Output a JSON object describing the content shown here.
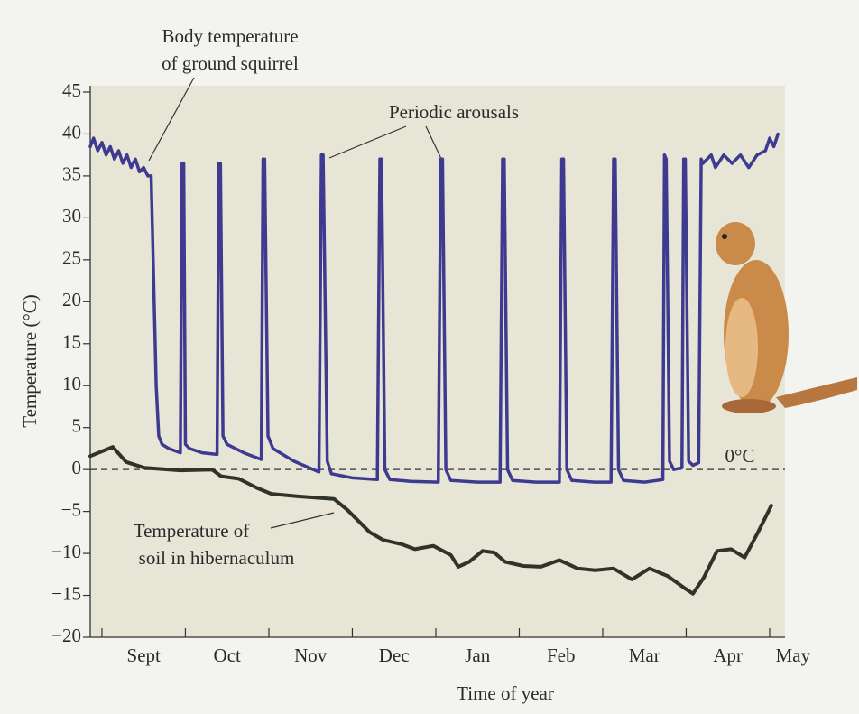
{
  "chart_data": {
    "type": "line",
    "x_title": "Time of year",
    "y_title": "Temperature (°C)",
    "xlim": [
      -0.14,
      8.13
    ],
    "xticks": [
      0,
      1,
      2,
      3,
      4,
      5,
      6,
      7,
      8
    ],
    "x_labels": [
      {
        "value": 0.5,
        "label": "Sept"
      },
      {
        "value": 1.5,
        "label": "Oct"
      },
      {
        "value": 2.5,
        "label": "Nov"
      },
      {
        "value": 3.5,
        "label": "Dec"
      },
      {
        "value": 4.5,
        "label": "Jan"
      },
      {
        "value": 5.5,
        "label": "Feb"
      },
      {
        "value": 6.5,
        "label": "Mar"
      },
      {
        "value": 7.5,
        "label": "Apr"
      },
      {
        "value": 8.28,
        "label": "May"
      }
    ],
    "ylim": [
      -20,
      45
    ],
    "yticks": [
      {
        "value": -20,
        "label": "−20"
      },
      {
        "value": -15,
        "label": "−15"
      },
      {
        "value": -10,
        "label": "−10"
      },
      {
        "value": -5,
        "label": "−5"
      },
      0,
      5,
      10,
      15,
      20,
      25,
      30,
      35,
      40,
      45
    ],
    "reference_line": {
      "value": 0,
      "label": "0°C"
    },
    "series": [
      {
        "color": "#3d3a8f",
        "x": [
          -0.14,
          -0.1,
          -0.05,
          0,
          0.05,
          0.1,
          0.15,
          0.2,
          0.25,
          0.3,
          0.35,
          0.4,
          0.45,
          0.5,
          0.55,
          0.59,
          0.65,
          0.68,
          0.72,
          0.8,
          0.94,
          0.96,
          0.98,
          1.0,
          1.05,
          1.2,
          1.38,
          1.4,
          1.42,
          1.45,
          1.5,
          1.7,
          1.91,
          1.93,
          1.95,
          1.99,
          2.05,
          2.3,
          2.6,
          2.63,
          2.65,
          2.7,
          2.75,
          3.0,
          3.3,
          3.33,
          3.35,
          3.39,
          3.45,
          3.7,
          4.03,
          4.06,
          4.08,
          4.12,
          4.18,
          4.5,
          4.77,
          4.8,
          4.82,
          4.86,
          4.92,
          5.2,
          5.48,
          5.51,
          5.53,
          5.57,
          5.63,
          5.9,
          6.1,
          6.13,
          6.15,
          6.19,
          6.25,
          6.5,
          6.72,
          6.74,
          6.76,
          6.8,
          6.85,
          6.95,
          6.97,
          6.99,
          7.03,
          7.08,
          7.15,
          7.18,
          7.2,
          7.3,
          7.35,
          7.45,
          7.55,
          7.65,
          7.75,
          7.85,
          7.95,
          8.0,
          8.05,
          8.1
        ],
        "values": [
          38.5,
          39.5,
          38,
          39,
          37.5,
          38.5,
          37,
          38,
          36.5,
          37.5,
          36,
          37,
          35.5,
          36,
          35,
          35,
          10,
          4,
          3,
          2.5,
          2,
          36.5,
          36.5,
          3,
          2.5,
          2,
          1.8,
          36.5,
          36.5,
          4,
          3,
          2,
          1.2,
          37,
          37,
          4,
          2.5,
          1,
          -0.3,
          37.5,
          37.5,
          1,
          -0.5,
          -1,
          -1.2,
          37,
          37,
          0,
          -1.2,
          -1.4,
          -1.5,
          37,
          37,
          0,
          -1.3,
          -1.5,
          -1.5,
          37,
          37,
          0,
          -1.3,
          -1.5,
          -1.5,
          37,
          37,
          0,
          -1.3,
          -1.5,
          -1.5,
          37,
          37,
          0,
          -1.3,
          -1.5,
          -1.2,
          37.5,
          37,
          1,
          0,
          0.2,
          37,
          37,
          1,
          0.5,
          0.8,
          37,
          36.5,
          37.5,
          36,
          37.5,
          36.5,
          37.5,
          36,
          37.5,
          38,
          39.5,
          38.5,
          40
        ]
      },
      {
        "color": "#2f3328",
        "x": [
          -0.14,
          0.13,
          0.29,
          0.51,
          0.94,
          1.32,
          1.43,
          1.64,
          1.86,
          2.03,
          2.35,
          2.78,
          2.94,
          3.21,
          3.37,
          3.59,
          3.75,
          3.97,
          4.18,
          4.27,
          4.4,
          4.56,
          4.7,
          4.83,
          5.05,
          5.26,
          5.48,
          5.7,
          5.91,
          6.13,
          6.35,
          6.56,
          6.78,
          6.99,
          7.08,
          7.21,
          7.37,
          7.54,
          7.7,
          7.86,
          8.02
        ],
        "values": [
          1.6,
          2.7,
          0.9,
          0.2,
          -0.1,
          0,
          -0.8,
          -1.1,
          -2.2,
          -2.9,
          -3.2,
          -3.5,
          -4.8,
          -7.5,
          -8.4,
          -8.9,
          -9.5,
          -9.1,
          -10.2,
          -11.6,
          -11,
          -9.7,
          -9.9,
          -11,
          -11.5,
          -11.6,
          -10.8,
          -11.8,
          -12,
          -11.8,
          -13.1,
          -11.8,
          -12.7,
          -14.2,
          -14.8,
          -12.9,
          -9.7,
          -9.5,
          -10.5,
          -7.5,
          -4.3
        ]
      }
    ],
    "annotations": [
      {
        "lines": [
          "Body temperature",
          "of ground squirrel"
        ]
      },
      {
        "lines": [
          "Periodic arousals"
        ]
      },
      {
        "lines": [
          "Temperature of",
          "soil in hibernaculum"
        ]
      }
    ]
  }
}
